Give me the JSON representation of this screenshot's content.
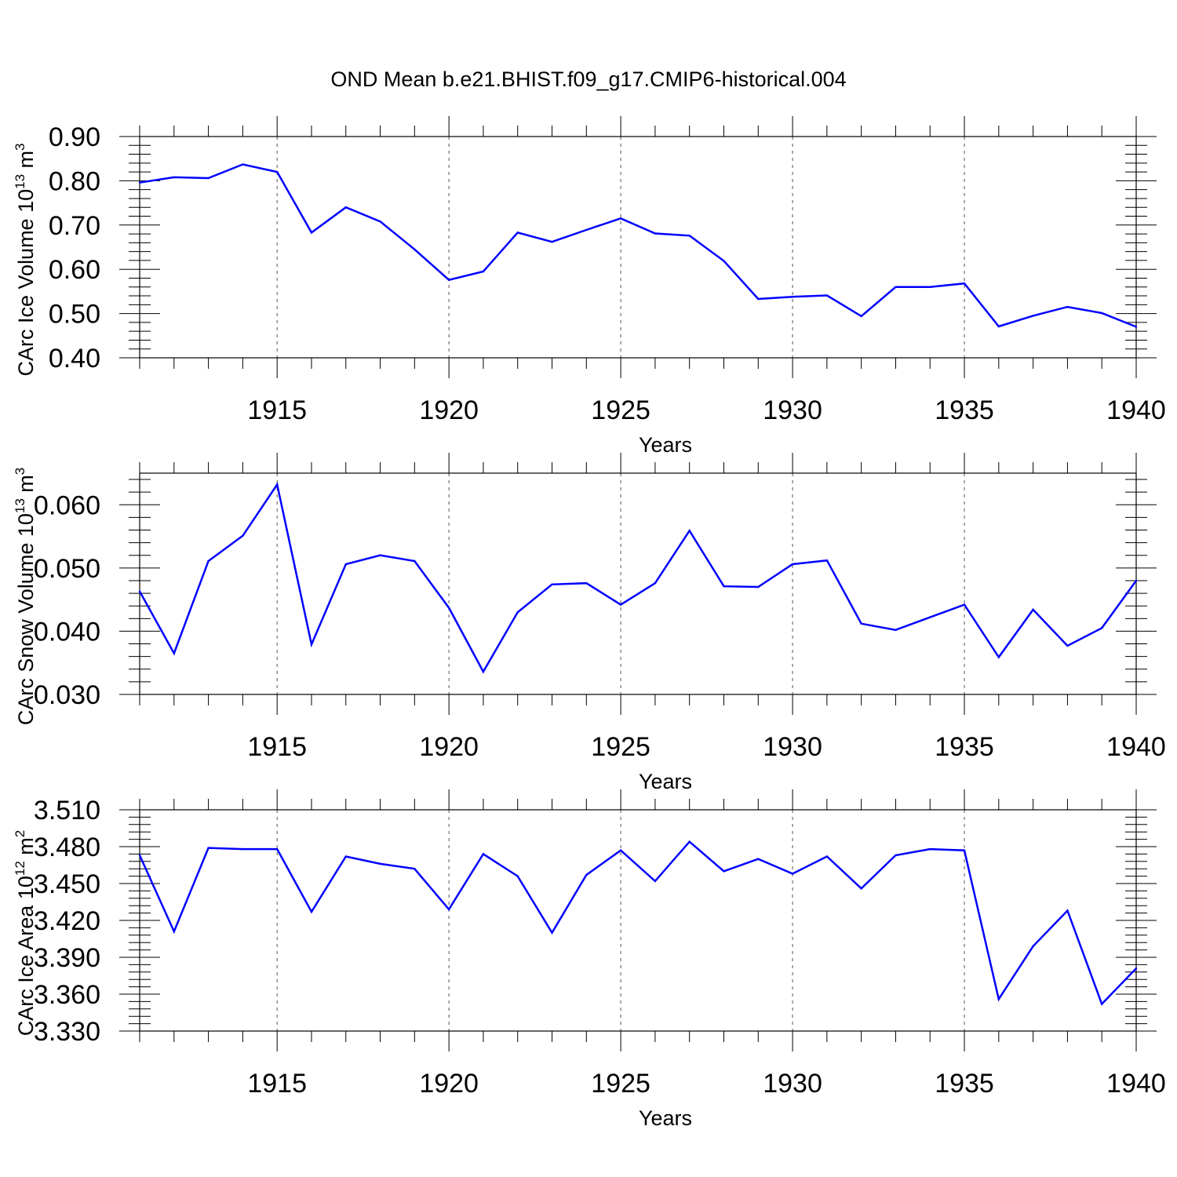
{
  "title": "OND Mean b.e21.BHIST.f09_g17.CMIP6-historical.004",
  "colors": {
    "series": "#0000ff",
    "axes": "#000000",
    "grid": "#555555"
  },
  "chart_data": [
    {
      "type": "line",
      "ylabel_pre": "CArc Ice Volume 10",
      "ylabel_exp": "13",
      "ylabel_post": " m",
      "ylabel_unit_exp": "3",
      "xlabel": "Years",
      "xlim": [
        1911,
        1940
      ],
      "ylim": [
        0.4,
        0.9
      ],
      "x_ticks": [
        "1915",
        "1920",
        "1925",
        "1930",
        "1935",
        "1940"
      ],
      "y_ticks": [
        "0.40",
        "0.50",
        "0.60",
        "0.70",
        "0.80",
        "0.90"
      ],
      "grid": "vertical dashed at labeled years",
      "x": [
        1911,
        1912,
        1913,
        1914,
        1915,
        1916,
        1917,
        1918,
        1919,
        1920,
        1921,
        1922,
        1923,
        1924,
        1925,
        1926,
        1927,
        1928,
        1929,
        1930,
        1931,
        1932,
        1933,
        1934,
        1935,
        1936,
        1937,
        1938,
        1939,
        1940
      ],
      "values": [
        0.796,
        0.808,
        0.806,
        0.837,
        0.82,
        0.683,
        0.74,
        0.708,
        0.645,
        0.576,
        0.595,
        0.683,
        0.662,
        0.689,
        0.715,
        0.681,
        0.676,
        0.619,
        0.533,
        0.538,
        0.541,
        0.494,
        0.56,
        0.56,
        0.568,
        0.471,
        0.495,
        0.515,
        0.501,
        0.47
      ]
    },
    {
      "type": "line",
      "ylabel_pre": "CArc Snow Volume 10",
      "ylabel_exp": "13",
      "ylabel_post": " m",
      "ylabel_unit_exp": "3",
      "xlabel": "Years",
      "xlim": [
        1911,
        1940
      ],
      "ylim": [
        0.03,
        0.065
      ],
      "x_ticks": [
        "1915",
        "1920",
        "1925",
        "1930",
        "1935",
        "1940"
      ],
      "y_ticks": [
        "0.030",
        "0.040",
        "0.050",
        "0.060"
      ],
      "grid": "vertical dashed at labeled years",
      "x": [
        1911,
        1912,
        1913,
        1914,
        1915,
        1916,
        1917,
        1918,
        1919,
        1920,
        1921,
        1922,
        1923,
        1924,
        1925,
        1926,
        1927,
        1928,
        1929,
        1930,
        1931,
        1932,
        1933,
        1934,
        1935,
        1936,
        1937,
        1938,
        1939,
        1940
      ],
      "values": [
        0.0463,
        0.0365,
        0.0511,
        0.0551,
        0.0632,
        0.0379,
        0.0506,
        0.052,
        0.0511,
        0.0437,
        0.0336,
        0.043,
        0.0474,
        0.0476,
        0.0442,
        0.0476,
        0.0559,
        0.0471,
        0.047,
        0.0506,
        0.0512,
        0.0412,
        0.0402,
        0.0422,
        0.0442,
        0.0359,
        0.0434,
        0.0377,
        0.0405,
        0.048
      ]
    },
    {
      "type": "line",
      "ylabel_pre": "CArc Ice Area 10",
      "ylabel_exp": "12",
      "ylabel_post": " m",
      "ylabel_unit_exp": "2",
      "xlabel": "Years",
      "xlim": [
        1911,
        1940
      ],
      "ylim": [
        3.33,
        3.51
      ],
      "x_ticks": [
        "1915",
        "1920",
        "1925",
        "1930",
        "1935",
        "1940"
      ],
      "y_ticks": [
        "3.330",
        "3.360",
        "3.390",
        "3.420",
        "3.450",
        "3.480",
        "3.510"
      ],
      "grid": "vertical dashed at labeled years",
      "x": [
        1911,
        1912,
        1913,
        1914,
        1915,
        1916,
        1917,
        1918,
        1919,
        1920,
        1921,
        1922,
        1923,
        1924,
        1925,
        1926,
        1927,
        1928,
        1929,
        1930,
        1931,
        1932,
        1933,
        1934,
        1935,
        1936,
        1937,
        1938,
        1939,
        1940
      ],
      "values": [
        3.473,
        3.411,
        3.479,
        3.478,
        3.478,
        3.427,
        3.472,
        3.466,
        3.462,
        3.429,
        3.474,
        3.456,
        3.41,
        3.457,
        3.477,
        3.452,
        3.484,
        3.46,
        3.47,
        3.458,
        3.472,
        3.446,
        3.473,
        3.478,
        3.477,
        3.356,
        3.399,
        3.428,
        3.352,
        3.381
      ]
    }
  ]
}
